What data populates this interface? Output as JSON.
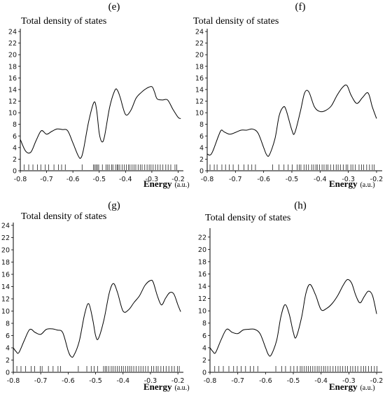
{
  "chart_data": [
    {
      "panel": "(e)",
      "type": "line",
      "title": "Total density of states",
      "xlabel": "Energy",
      "xunit": "(a.u.)",
      "xlim": [
        -0.8,
        -0.18
      ],
      "ylim": [
        0,
        24
      ],
      "xticks": [
        -0.8,
        -0.7,
        -0.6,
        -0.5,
        -0.4,
        -0.3,
        -0.2
      ],
      "xtick_labels": [
        "-0.8",
        "-0.7",
        "-0.6",
        "-0.5",
        "-0.4",
        "-0.3",
        "-0.2"
      ],
      "yticks": [
        0,
        2,
        4,
        6,
        8,
        10,
        12,
        14,
        16,
        18,
        20,
        22,
        24
      ],
      "x": [
        -0.8,
        -0.78,
        -0.76,
        -0.74,
        -0.72,
        -0.7,
        -0.68,
        -0.66,
        -0.64,
        -0.62,
        -0.6,
        -0.58,
        -0.57,
        -0.56,
        -0.54,
        -0.52,
        -0.51,
        -0.5,
        -0.49,
        -0.48,
        -0.46,
        -0.44,
        -0.43,
        -0.42,
        -0.4,
        -0.38,
        -0.36,
        -0.34,
        -0.32,
        -0.3,
        -0.29,
        -0.28,
        -0.26,
        -0.24,
        -0.22,
        -0.2,
        -0.19
      ],
      "y": [
        5.4,
        3.4,
        3.2,
        5.2,
        6.9,
        6.3,
        6.8,
        7.2,
        7.1,
        6.9,
        4.8,
        2.6,
        2.2,
        3.6,
        8.5,
        11.8,
        10.5,
        6.5,
        5.0,
        5.9,
        11.0,
        13.9,
        13.8,
        12.6,
        9.7,
        10.4,
        12.5,
        13.5,
        14.2,
        14.5,
        13.6,
        12.4,
        12.2,
        12.2,
        10.6,
        9.2,
        9.0
      ],
      "ticks": [
        -0.785,
        -0.768,
        -0.752,
        -0.735,
        -0.722,
        -0.705,
        -0.692,
        -0.672,
        -0.655,
        -0.643,
        -0.629,
        -0.565,
        -0.522,
        -0.517,
        -0.512,
        -0.507,
        -0.502,
        -0.488,
        -0.474,
        -0.468,
        -0.462,
        -0.453,
        -0.448,
        -0.438,
        -0.432,
        -0.428,
        -0.422,
        -0.413,
        -0.405,
        -0.397,
        -0.389,
        -0.383,
        -0.375,
        -0.368,
        -0.361,
        -0.352,
        -0.344,
        -0.337,
        -0.327,
        -0.318,
        -0.31,
        -0.303,
        -0.295,
        -0.286,
        -0.277,
        -0.268,
        -0.258,
        -0.247,
        -0.238,
        -0.228,
        -0.212,
        -0.205
      ]
    },
    {
      "panel": "(f)",
      "type": "line",
      "title": "Total density of states",
      "xlabel": "Energy",
      "xunit": "(a.u.)",
      "xlim": [
        -0.8,
        -0.18
      ],
      "ylim": [
        0,
        24
      ],
      "xticks": [
        -0.8,
        -0.7,
        -0.6,
        -0.5,
        -0.4,
        -0.3,
        -0.2
      ],
      "xtick_labels": [
        "-0.8",
        "-0.7",
        "-0.6",
        "-0.5",
        "-0.4",
        "-0.3",
        "-0.2"
      ],
      "yticks": [
        0,
        2,
        4,
        6,
        8,
        10,
        12,
        14,
        16,
        18,
        20,
        22,
        24
      ],
      "x": [
        -0.8,
        -0.79,
        -0.78,
        -0.76,
        -0.75,
        -0.74,
        -0.72,
        -0.7,
        -0.68,
        -0.66,
        -0.64,
        -0.62,
        -0.6,
        -0.59,
        -0.58,
        -0.56,
        -0.545,
        -0.53,
        -0.52,
        -0.5,
        -0.49,
        -0.47,
        -0.455,
        -0.44,
        -0.42,
        -0.4,
        -0.38,
        -0.36,
        -0.34,
        -0.32,
        -0.305,
        -0.29,
        -0.27,
        -0.25,
        -0.23,
        -0.215,
        -0.2
      ],
      "y": [
        2.9,
        2.7,
        3.4,
        6.0,
        7.0,
        6.7,
        6.3,
        6.6,
        7.0,
        7.0,
        7.2,
        6.5,
        4.0,
        2.8,
        2.7,
        5.5,
        9.5,
        11.0,
        10.4,
        7.0,
        6.5,
        10.2,
        13.4,
        13.6,
        11.0,
        10.2,
        10.4,
        11.2,
        13.0,
        14.4,
        14.7,
        13.0,
        11.6,
        12.6,
        13.4,
        11.0,
        9.0
      ],
      "ticks": [
        -0.79,
        -0.775,
        -0.765,
        -0.748,
        -0.735,
        -0.722,
        -0.708,
        -0.689,
        -0.67,
        -0.655,
        -0.642,
        -0.629,
        -0.568,
        -0.546,
        -0.528,
        -0.513,
        -0.499,
        -0.481,
        -0.474,
        -0.468,
        -0.457,
        -0.449,
        -0.441,
        -0.43,
        -0.423,
        -0.415,
        -0.41,
        -0.402,
        -0.393,
        -0.386,
        -0.378,
        -0.372,
        -0.363,
        -0.352,
        -0.343,
        -0.336,
        -0.328,
        -0.318,
        -0.308,
        -0.302,
        -0.291,
        -0.284,
        -0.275,
        -0.262,
        -0.253,
        -0.246,
        -0.235,
        -0.225,
        -0.215,
        -0.208
      ]
    },
    {
      "panel": "(g)",
      "type": "line",
      "title": "Total density of states",
      "xlabel": "Energy",
      "xunit": "(a.u.)",
      "xlim": [
        -0.8,
        -0.18
      ],
      "ylim": [
        0,
        24
      ],
      "xticks": [
        -0.8,
        -0.7,
        -0.6,
        -0.5,
        -0.4,
        -0.3,
        -0.2
      ],
      "xtick_labels": [
        "-0.8",
        "-0.7",
        "-0.6",
        "-0.5",
        "-0.4",
        "-0.3",
        "-0.2"
      ],
      "yticks": [
        0,
        2,
        4,
        6,
        8,
        10,
        12,
        14,
        16,
        18,
        20,
        22,
        24
      ],
      "x": [
        -0.8,
        -0.79,
        -0.78,
        -0.76,
        -0.74,
        -0.72,
        -0.7,
        -0.68,
        -0.66,
        -0.64,
        -0.62,
        -0.6,
        -0.59,
        -0.58,
        -0.56,
        -0.54,
        -0.525,
        -0.51,
        -0.5,
        -0.49,
        -0.47,
        -0.45,
        -0.435,
        -0.42,
        -0.4,
        -0.38,
        -0.36,
        -0.34,
        -0.32,
        -0.3,
        -0.29,
        -0.275,
        -0.26,
        -0.245,
        -0.23,
        -0.215,
        -0.2,
        -0.19
      ],
      "y": [
        4.0,
        3.4,
        3.2,
        5.2,
        7.0,
        6.5,
        6.2,
        7.0,
        7.1,
        6.9,
        6.5,
        3.5,
        2.6,
        2.7,
        5.0,
        9.5,
        11.2,
        8.5,
        6.0,
        5.5,
        8.5,
        13.0,
        14.5,
        13.0,
        10.0,
        10.2,
        11.4,
        12.5,
        14.2,
        15.0,
        14.7,
        12.5,
        11.0,
        12.1,
        13.0,
        12.8,
        11.0,
        9.9
      ],
      "ticks": [
        -0.787,
        -0.772,
        -0.755,
        -0.735,
        -0.722,
        -0.702,
        -0.695,
        -0.672,
        -0.655,
        -0.637,
        -0.628,
        -0.563,
        -0.532,
        -0.516,
        -0.505,
        -0.493,
        -0.471,
        -0.465,
        -0.459,
        -0.452,
        -0.443,
        -0.436,
        -0.429,
        -0.421,
        -0.414,
        -0.406,
        -0.399,
        -0.391,
        -0.383,
        -0.376,
        -0.369,
        -0.361,
        -0.352,
        -0.343,
        -0.335,
        -0.327,
        -0.318,
        -0.309,
        -0.296,
        -0.288,
        -0.279,
        -0.272,
        -0.262,
        -0.253,
        -0.243,
        -0.233,
        -0.222,
        -0.213,
        -0.202,
        -0.195
      ]
    },
    {
      "panel": "(h)",
      "type": "line",
      "title": "Total density of states",
      "xlabel": "Energy",
      "xunit": "(a.u.)",
      "xlim": [
        -0.8,
        -0.18
      ],
      "ylim": [
        0,
        23
      ],
      "xticks": [
        -0.8,
        -0.7,
        -0.6,
        -0.5,
        -0.4,
        -0.3,
        -0.2
      ],
      "xtick_labels": [
        "-0.8",
        "-0.7",
        "-0.6",
        "-0.5",
        "-0.4",
        "-0.3",
        "-0.2"
      ],
      "yticks": [
        0,
        2,
        4,
        6,
        8,
        10,
        12,
        14,
        16,
        18,
        20,
        22
      ],
      "x": [
        -0.8,
        -0.79,
        -0.78,
        -0.76,
        -0.74,
        -0.72,
        -0.7,
        -0.68,
        -0.66,
        -0.64,
        -0.62,
        -0.6,
        -0.59,
        -0.58,
        -0.56,
        -0.545,
        -0.53,
        -0.515,
        -0.5,
        -0.49,
        -0.47,
        -0.455,
        -0.44,
        -0.42,
        -0.4,
        -0.38,
        -0.36,
        -0.34,
        -0.32,
        -0.305,
        -0.29,
        -0.275,
        -0.26,
        -0.245,
        -0.23,
        -0.215,
        -0.2
      ],
      "y": [
        4.0,
        3.4,
        3.2,
        5.3,
        7.0,
        6.5,
        6.3,
        6.9,
        7.0,
        7.0,
        6.3,
        4.0,
        2.9,
        2.8,
        5.2,
        9.0,
        11.0,
        9.5,
        6.5,
        5.7,
        9.0,
        12.8,
        14.3,
        12.6,
        10.2,
        10.4,
        11.2,
        12.5,
        14.2,
        15.1,
        14.5,
        12.5,
        11.3,
        12.3,
        13.2,
        12.5,
        9.5
      ],
      "ticks": [
        -0.783,
        -0.768,
        -0.752,
        -0.732,
        -0.715,
        -0.702,
        -0.688,
        -0.672,
        -0.655,
        -0.643,
        -0.628,
        -0.563,
        -0.542,
        -0.528,
        -0.51,
        -0.498,
        -0.486,
        -0.475,
        -0.469,
        -0.461,
        -0.453,
        -0.446,
        -0.438,
        -0.43,
        -0.422,
        -0.414,
        -0.407,
        -0.399,
        -0.391,
        -0.384,
        -0.376,
        -0.367,
        -0.357,
        -0.348,
        -0.339,
        -0.331,
        -0.322,
        -0.313,
        -0.305,
        -0.294,
        -0.286,
        -0.277,
        -0.268,
        -0.256,
        -0.247,
        -0.239,
        -0.229,
        -0.219,
        -0.208,
        -0.199
      ]
    }
  ]
}
